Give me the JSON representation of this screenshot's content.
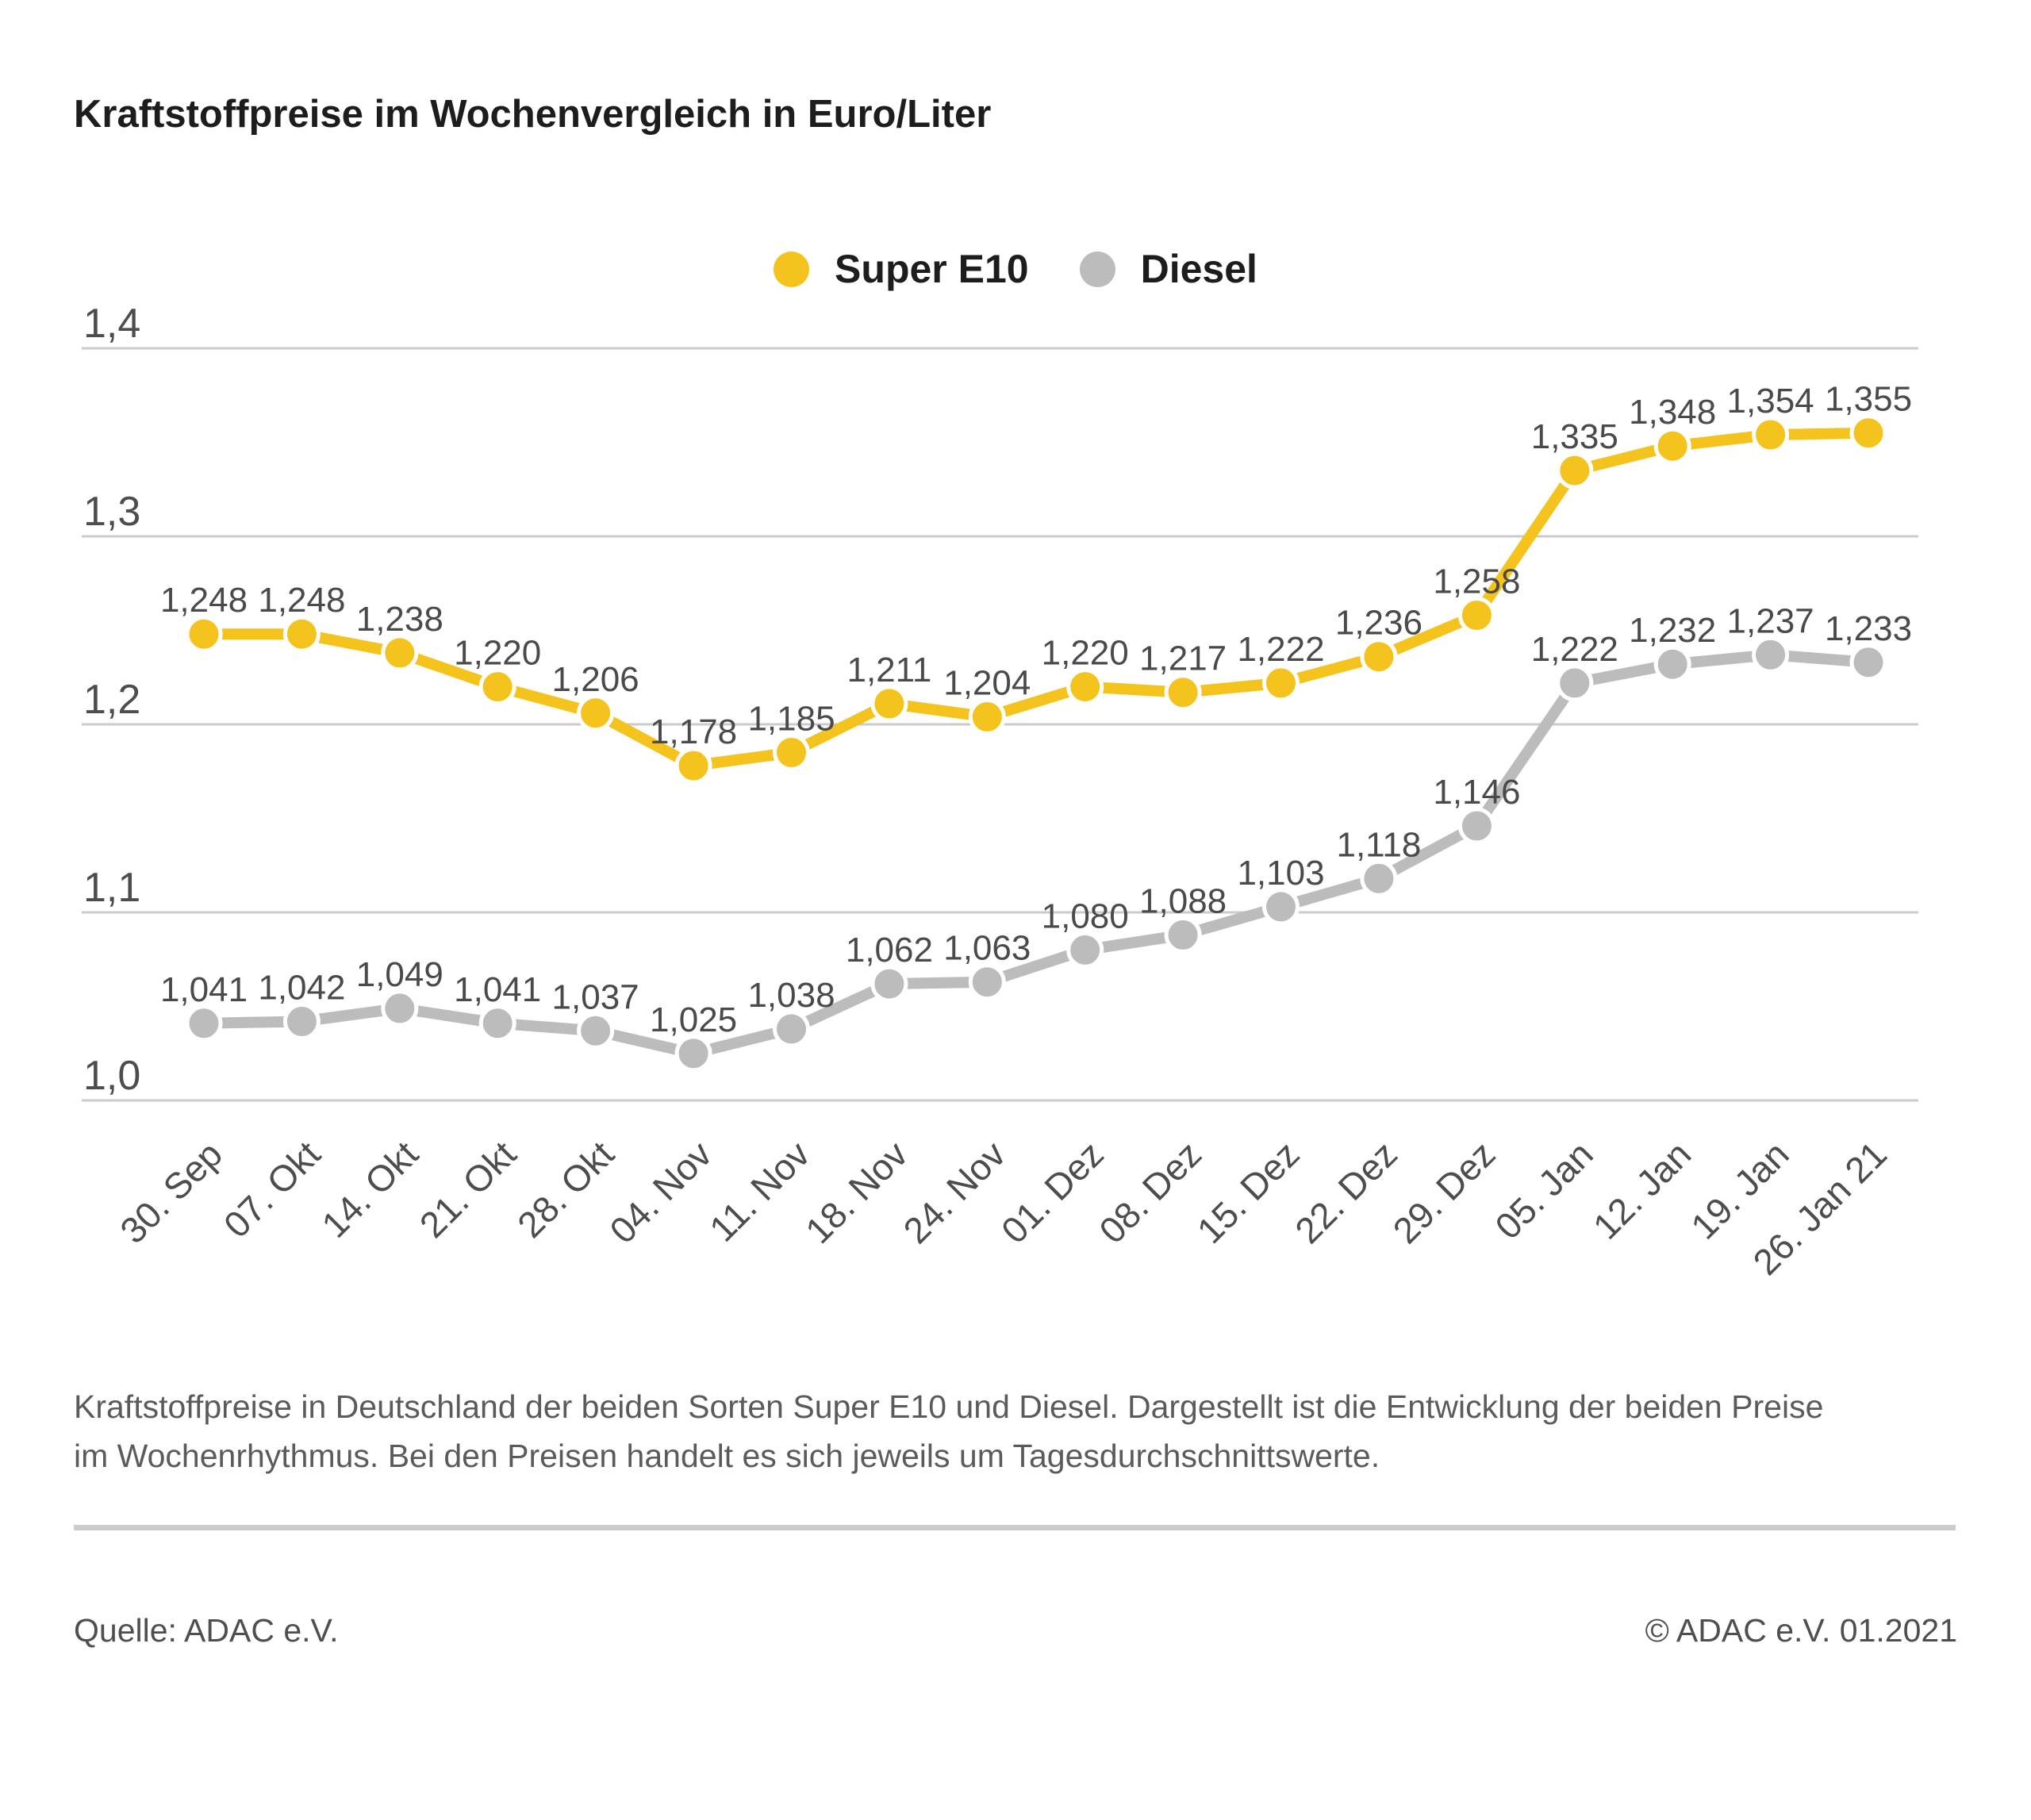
{
  "title": "Kraftstoffpreise im Wochenvergleich in Euro/Liter",
  "legend": {
    "items": [
      {
        "label": "Super E10"
      },
      {
        "label": "Diesel"
      }
    ]
  },
  "chart_data": {
    "type": "line",
    "title": "Kraftstoffpreise im Wochenvergleich in Euro/Liter",
    "xlabel": "",
    "ylabel": "Euro/Liter",
    "ylim": [
      1.0,
      1.4
    ],
    "grid": true,
    "legend_position": "top-center",
    "yticks": [
      {
        "value": 1.0,
        "label": "1,0"
      },
      {
        "value": 1.1,
        "label": "1,1"
      },
      {
        "value": 1.2,
        "label": "1,2"
      },
      {
        "value": 1.3,
        "label": "1,3"
      },
      {
        "value": 1.4,
        "label": "1,4"
      }
    ],
    "categories": [
      "30. Sep",
      "07. Okt",
      "14. Okt",
      "21. Okt",
      "28. Okt",
      "04. Nov",
      "11. Nov",
      "18. Nov",
      "24. Nov",
      "01. Dez",
      "08. Dez",
      "15. Dez",
      "22. Dez",
      "29. Dez",
      "05. Jan",
      "12. Jan",
      "19. Jan",
      "26. Jan 21"
    ],
    "series": [
      {
        "name": "Super E10",
        "color": "#F5C31D",
        "values": [
          1.248,
          1.248,
          1.238,
          1.22,
          1.206,
          1.178,
          1.185,
          1.211,
          1.204,
          1.22,
          1.217,
          1.222,
          1.236,
          1.258,
          1.335,
          1.348,
          1.354,
          1.355
        ],
        "labels": [
          "1,248",
          "1,248",
          "1,238",
          "1,220",
          "1,206",
          "1,178",
          "1,185",
          "1,211",
          "1,204",
          "1,220",
          "1,217",
          "1,222",
          "1,236",
          "1,258",
          "1,335",
          "1,348",
          "1,354",
          "1,355"
        ]
      },
      {
        "name": "Diesel",
        "color": "#BCBCBC",
        "values": [
          1.041,
          1.042,
          1.049,
          1.041,
          1.037,
          1.025,
          1.038,
          1.062,
          1.063,
          1.08,
          1.088,
          1.103,
          1.118,
          1.146,
          1.222,
          1.232,
          1.237,
          1.233
        ],
        "labels": [
          "1,041",
          "1,042",
          "1,049",
          "1,041",
          "1,037",
          "1,025",
          "1,038",
          "1,062",
          "1,063",
          "1,080",
          "1,088",
          "1,103",
          "1,118",
          "1,146",
          "1,222",
          "1,232",
          "1,237",
          "1,233"
        ]
      }
    ]
  },
  "caption": "Kraftstoffpreise in Deutschland der beiden Sorten Super E10 und Diesel. Dargestellt ist die Entwicklung der beiden Preise im Wochenrhythmus. Bei den Preisen handelt es sich jeweils um Tagesdurchschnittswerte.",
  "footer": {
    "source": "Quelle: ADAC e.V.",
    "copyright": "© ADAC e.V. 01.2021"
  },
  "colors": {
    "grid": "#CBCBCB",
    "axis_text": "#4D4D4D",
    "data_label": "#4A4A4A",
    "divider": "#CCCCCC"
  }
}
